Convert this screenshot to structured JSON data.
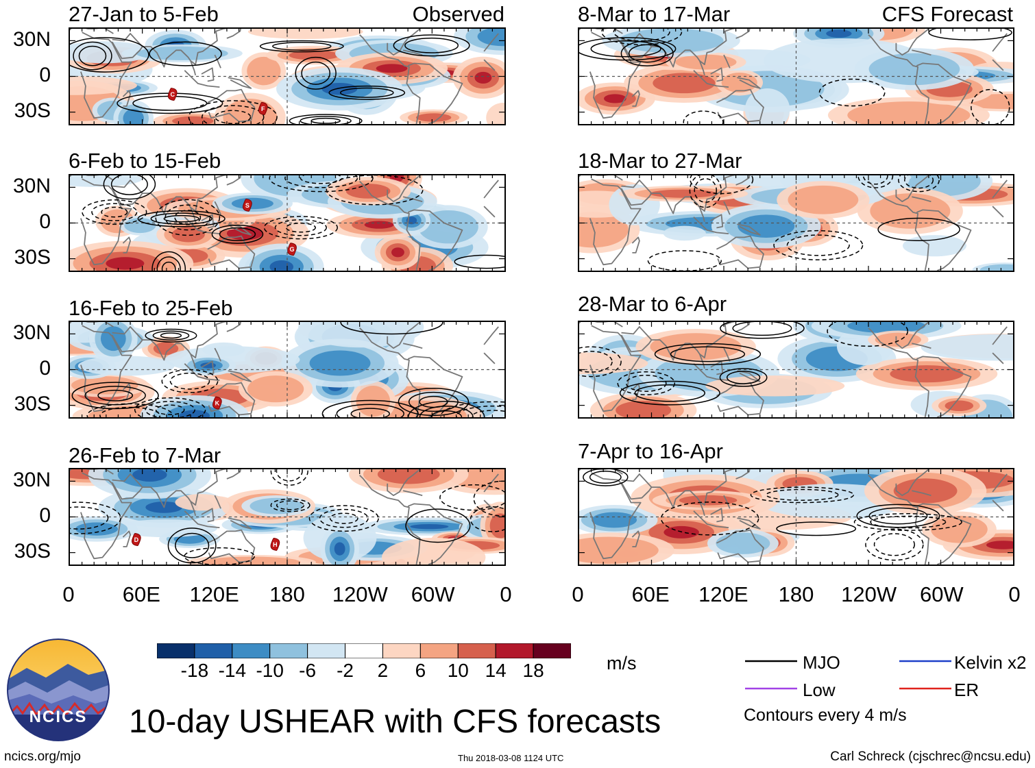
{
  "figure": {
    "title": "10-day USHEAR with CFS forecasts",
    "units": "m/s",
    "contour_note": "Contours every 4 m/s",
    "logo_text": "NCICS",
    "site": "ncics.org/mjo",
    "timestamp": "Thu 2018-03-08 1124 UTC",
    "author": "Carl Schreck (cjschrec@ncsu.edu)",
    "colors": {
      "land": "#777777",
      "grid": "#555555",
      "contour": "#000000"
    }
  },
  "chart_data": {
    "type": "heatmap",
    "variable": "10-day mean zonal wind shear anomaly (USHEAR)",
    "unit": "m/s",
    "lat_ticks": [
      "30N",
      "0",
      "30S"
    ],
    "lon_ticks": [
      "0",
      "60E",
      "120E",
      "180",
      "120W",
      "60W",
      "0"
    ],
    "colorbar": {
      "ticks": [
        "-18",
        "-14",
        "-10",
        "-6",
        "-2",
        "2",
        "6",
        "10",
        "14",
        "18"
      ],
      "colors": [
        "#08306b",
        "#1f5fa8",
        "#3d8cc4",
        "#8fc1de",
        "#d2e6f3",
        "#ffffff",
        "#fdd6c2",
        "#f4a482",
        "#d6604d",
        "#b2182b",
        "#67001f"
      ]
    },
    "legend": [
      {
        "label": "MJO",
        "color": "#000000"
      },
      {
        "label": "Kelvin x2",
        "color": "#1d3fc9"
      },
      {
        "label": "Low",
        "color": "#a142e6"
      },
      {
        "label": "ER",
        "color": "#e0231c"
      }
    ],
    "columns": [
      {
        "label": "Observed"
      },
      {
        "label": "CFS Forecast"
      }
    ],
    "panels": [
      {
        "col": 0,
        "row": 0,
        "title": "27-Jan to 5-Feb",
        "source": "Observed",
        "storms": [
          {
            "id": "C",
            "lon": 85,
            "lat": -15
          },
          {
            "id": "F",
            "lon": 160,
            "lat": -27
          }
        ]
      },
      {
        "col": 0,
        "row": 1,
        "title": "6-Feb to 15-Feb",
        "source": "Observed",
        "storms": [
          {
            "id": "S",
            "lon": 147,
            "lat": 15
          },
          {
            "id": "G",
            "lon": 184,
            "lat": -22
          }
        ]
      },
      {
        "col": 0,
        "row": 2,
        "title": "16-Feb to 25-Feb",
        "source": "Observed",
        "storms": [
          {
            "id": "K",
            "lon": 122,
            "lat": -28
          }
        ]
      },
      {
        "col": 0,
        "row": 3,
        "title": "26-Feb to 7-Mar",
        "source": "Observed",
        "storms": [
          {
            "id": "D",
            "lon": 55,
            "lat": -19
          },
          {
            "id": "H",
            "lon": 170,
            "lat": -23
          }
        ]
      },
      {
        "col": 1,
        "row": 0,
        "title": "8-Mar to 17-Mar",
        "source": "CFS Forecast",
        "storms": []
      },
      {
        "col": 1,
        "row": 1,
        "title": "18-Mar to 27-Mar",
        "source": "CFS Forecast",
        "storms": []
      },
      {
        "col": 1,
        "row": 2,
        "title": "28-Mar to 6-Apr",
        "source": "CFS Forecast",
        "storms": []
      },
      {
        "col": 1,
        "row": 3,
        "title": "7-Apr to 16-Apr",
        "source": "CFS Forecast",
        "storms": []
      }
    ]
  }
}
